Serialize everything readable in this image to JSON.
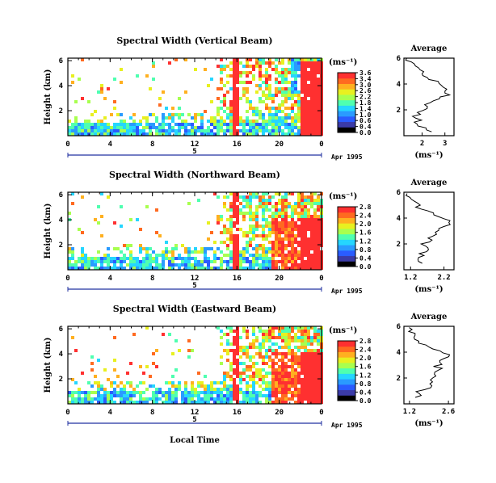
{
  "common": {
    "x_ticks": [
      "0",
      "4",
      "8",
      "12",
      "16",
      "20",
      "0"
    ],
    "y_ticks": [
      "6",
      "4",
      "2"
    ],
    "y_label": "Height (km)",
    "day_label": "5",
    "date_label": "Apr 1995",
    "unit_label": "(ms⁻¹)",
    "avg_title": "Average",
    "avg_unit": "(ms⁻¹)",
    "x_label": "Local Time"
  },
  "colors": [
    "#000000",
    "#3b3ba8",
    "#2a5cff",
    "#2a9bff",
    "#25d6ff",
    "#4fffb0",
    "#a8ff4f",
    "#e8f020",
    "#ffb020",
    "#ff6a20",
    "#ff3030"
  ],
  "chart_data": [
    {
      "type": "heatmap",
      "title": "Spectral Width (Vertical Beam)",
      "xlabel": "",
      "ylabel": "Height (km)",
      "xlim": [
        0,
        24
      ],
      "ylim": [
        0,
        6.2
      ],
      "colorbar": {
        "ticks": [
          "3.6",
          "3.4",
          "3.0",
          "2.6",
          "2.2",
          "1.8",
          "1.4",
          "1.0",
          "0.6",
          "0.4",
          "0.0"
        ]
      },
      "average": {
        "x_ticks": [
          "2",
          "3"
        ],
        "xlim": [
          1.2,
          3.4
        ],
        "ylim": [
          0,
          6
        ],
        "y": [
          0.3,
          0.6,
          0.9,
          1.2,
          1.5,
          1.8,
          2.1,
          2.4,
          2.7,
          3.0,
          3.3,
          3.6,
          3.9,
          4.2,
          4.5,
          4.8,
          5.1,
          5.4,
          5.7,
          6.0
        ],
        "x": [
          2.5,
          2.2,
          1.8,
          1.9,
          1.6,
          1.9,
          2.3,
          2.1,
          2.6,
          2.9,
          3.1,
          3.0,
          2.8,
          2.6,
          2.3,
          2.0,
          1.8,
          1.7,
          1.5,
          1.4
        ]
      }
    },
    {
      "type": "heatmap",
      "title": "Spectral Width (Northward Beam)",
      "xlabel": "",
      "ylabel": "Height (km)",
      "xlim": [
        0,
        24
      ],
      "ylim": [
        0,
        6.2
      ],
      "colorbar": {
        "ticks": [
          "2.8",
          "2.4",
          "2.0",
          "1.6",
          "1.2",
          "0.8",
          "0.4",
          "0.0"
        ]
      },
      "average": {
        "x_ticks": [
          "1.2",
          "2.2"
        ],
        "xlim": [
          1.0,
          2.5
        ],
        "ylim": [
          0,
          6
        ],
        "y": [
          0.5,
          0.8,
          1.1,
          1.4,
          1.7,
          2.0,
          2.3,
          2.6,
          2.9,
          3.2,
          3.5,
          3.8,
          4.1,
          4.4,
          4.7,
          5.0,
          5.3,
          5.6,
          5.9
        ],
        "x": [
          1.6,
          1.5,
          1.6,
          1.6,
          1.7,
          1.6,
          1.8,
          1.9,
          2.0,
          2.1,
          2.3,
          2.4,
          2.1,
          1.8,
          1.6,
          1.4,
          1.3,
          1.2,
          1.1
        ]
      }
    },
    {
      "type": "heatmap",
      "title": "Spectral Width (Eastward Beam)",
      "xlabel": "Local Time",
      "ylabel": "Height (km)",
      "xlim": [
        0,
        24
      ],
      "ylim": [
        0,
        6.2
      ],
      "colorbar": {
        "ticks": [
          "2.8",
          "2.4",
          "2.0",
          "1.6",
          "1.2",
          "0.8",
          "0.4",
          "0.0"
        ]
      },
      "average": {
        "x_ticks": [
          "1.2",
          "2.6"
        ],
        "xlim": [
          1.0,
          2.8
        ],
        "ylim": [
          0,
          6
        ],
        "y": [
          0.5,
          0.8,
          1.1,
          1.4,
          1.7,
          2.0,
          2.3,
          2.6,
          2.9,
          3.2,
          3.5,
          3.8,
          4.1,
          4.4,
          4.7,
          5.0,
          5.3,
          5.6,
          5.9
        ],
        "x": [
          1.4,
          1.5,
          1.7,
          1.9,
          2.0,
          2.1,
          2.2,
          2.3,
          2.1,
          2.3,
          2.5,
          2.6,
          2.3,
          1.9,
          1.6,
          1.4,
          1.3,
          1.2,
          1.1
        ]
      }
    }
  ]
}
